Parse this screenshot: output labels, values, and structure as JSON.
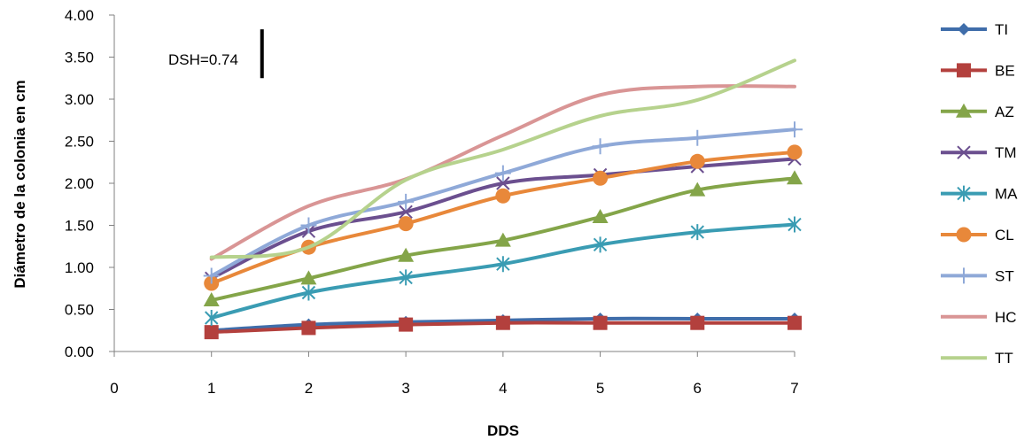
{
  "chart_data": {
    "type": "line",
    "xlabel": "DDS",
    "ylabel": "Diámetro de la colonia en cm",
    "xlim": [
      0,
      7
    ],
    "ylim": [
      0,
      4
    ],
    "x_ticks": [
      "0",
      "1",
      "2",
      "3",
      "4",
      "5",
      "6",
      "7"
    ],
    "y_ticks": [
      "0.00",
      "0.50",
      "1.00",
      "1.50",
      "2.00",
      "2.50",
      "3.00",
      "3.50",
      "4.00"
    ],
    "grid": false,
    "legend_position": "right",
    "annotation": {
      "text": "DSH=0.74",
      "bar_value": 0.58,
      "bar_x": 1.52,
      "bar_y_bottom": 3.25
    },
    "x": [
      1,
      2,
      3,
      4,
      5,
      6,
      7
    ],
    "series": [
      {
        "name": "TI",
        "color": "#3F6DAA",
        "marker": "diamond",
        "values": [
          0.25,
          0.32,
          0.35,
          0.37,
          0.39,
          0.39,
          0.39
        ]
      },
      {
        "name": "BE",
        "color": "#B3403D",
        "marker": "square",
        "values": [
          0.23,
          0.28,
          0.32,
          0.34,
          0.34,
          0.34,
          0.34
        ]
      },
      {
        "name": "AZ",
        "color": "#84A549",
        "marker": "triangle",
        "values": [
          0.61,
          0.87,
          1.14,
          1.32,
          1.6,
          1.92,
          2.06
        ]
      },
      {
        "name": "TM",
        "color": "#6B4F8F",
        "marker": "x",
        "values": [
          0.87,
          1.43,
          1.66,
          2.0,
          2.1,
          2.2,
          2.29
        ]
      },
      {
        "name": "MA",
        "color": "#3A9CB3",
        "marker": "star",
        "values": [
          0.4,
          0.7,
          0.88,
          1.04,
          1.27,
          1.42,
          1.51
        ]
      },
      {
        "name": "CL",
        "color": "#E8883A",
        "marker": "circle",
        "values": [
          0.81,
          1.24,
          1.52,
          1.85,
          2.06,
          2.26,
          2.37
        ]
      },
      {
        "name": "ST",
        "color": "#8FA9D8",
        "marker": "plus",
        "values": [
          0.9,
          1.5,
          1.78,
          2.12,
          2.44,
          2.54,
          2.64
        ]
      },
      {
        "name": "HC",
        "color": "#D99595",
        "marker": "none",
        "values": [
          1.1,
          1.73,
          2.05,
          2.57,
          3.05,
          3.15,
          3.15
        ]
      },
      {
        "name": "TT",
        "color": "#B6D28D",
        "marker": "none",
        "values": [
          1.12,
          1.24,
          2.04,
          2.4,
          2.8,
          2.99,
          3.46
        ]
      }
    ]
  }
}
